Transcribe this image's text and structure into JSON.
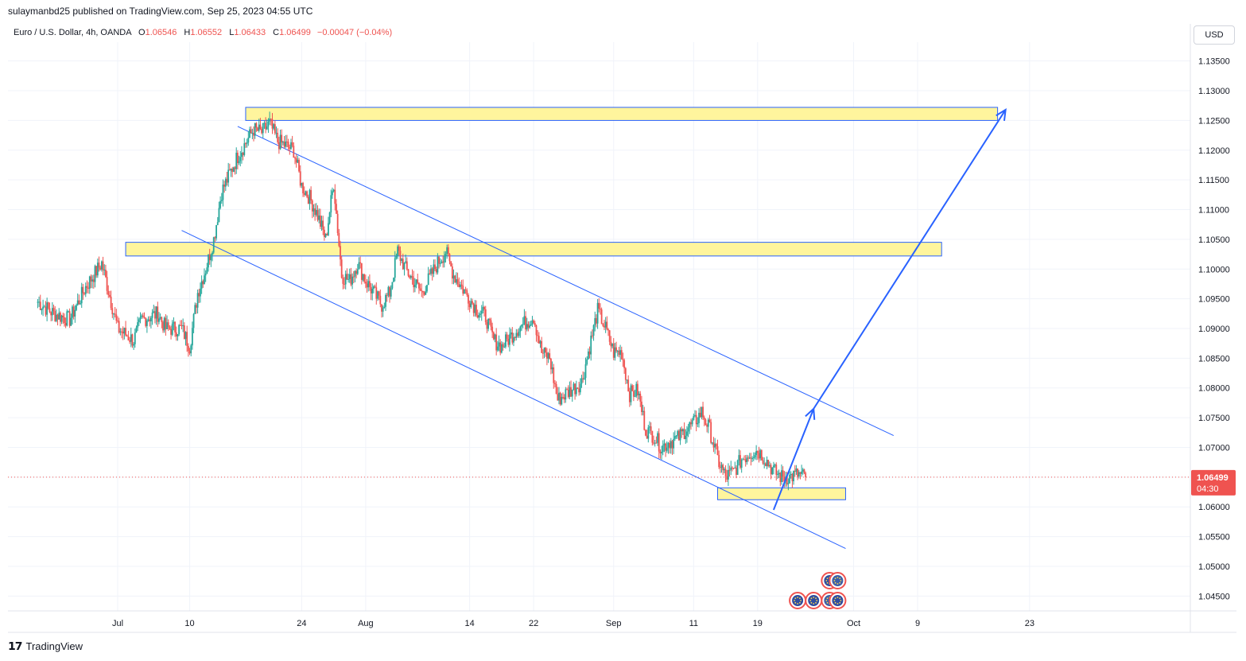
{
  "header": {
    "published": "sulaymanbd25 published on TradingView.com, Sep 25, 2023 04:55 UTC"
  },
  "legend": {
    "symbol": "Euro / U.S. Dollar, 4h, OANDA",
    "o_label": "O",
    "o": "1.06546",
    "h_label": "H",
    "h": "1.06552",
    "l_label": "L",
    "l": "1.06433",
    "c_label": "C",
    "c": "1.06499",
    "change": "−0.00047 (−0.04%)"
  },
  "currency_button": "USD",
  "footer": {
    "brand": "TradingView",
    "logo_icon": "tradingview-logo-icon"
  },
  "colors": {
    "up": "#26a69a",
    "down": "#ef5350",
    "zone_fill": "#fff59d",
    "zone_stroke": "#2962ff",
    "channel": "#2962ff",
    "price_tag": "#ef5350"
  },
  "chart_data": {
    "type": "candlestick",
    "symbol": "EURUSD",
    "timeframe": "4h",
    "y_axis": {
      "ylim": [
        1.0425,
        1.1375
      ],
      "ticks": [
        "1.13500",
        "1.13000",
        "1.12500",
        "1.12000",
        "1.11500",
        "1.11000",
        "1.10500",
        "1.10000",
        "1.09500",
        "1.09000",
        "1.08500",
        "1.08000",
        "1.07500",
        "1.07000",
        "1.06500",
        "1.06000",
        "1.05500",
        "1.05000",
        "1.04500"
      ],
      "tick_values": [
        1.135,
        1.13,
        1.125,
        1.12,
        1.115,
        1.11,
        1.105,
        1.1,
        1.095,
        1.09,
        1.085,
        1.08,
        1.075,
        1.07,
        1.065,
        1.06,
        1.055,
        1.05,
        1.045
      ]
    },
    "x_axis": {
      "labels": [
        "Jul",
        "10",
        "24",
        "Aug",
        "14",
        "22",
        "Sep",
        "11",
        "19",
        "Oct",
        "9",
        "23"
      ],
      "label_dates": [
        "2023-07-01",
        "2023-07-10",
        "2023-07-24",
        "2023-08-01",
        "2023-08-14",
        "2023-08-22",
        "2023-09-01",
        "2023-09-11",
        "2023-09-19",
        "2023-10-01",
        "2023-10-09",
        "2023-10-23"
      ]
    },
    "last_price": {
      "value": 1.06499,
      "label": "1.06499",
      "countdown": "04:30"
    },
    "closes_path": [
      [
        "2023-06-21",
        1.0945
      ],
      [
        "2023-06-23",
        1.0925
      ],
      [
        "2023-06-25",
        1.0915
      ],
      [
        "2023-06-27",
        1.097
      ],
      [
        "2023-06-29",
        1.101
      ],
      [
        "2023-07-01",
        1.09
      ],
      [
        "2023-07-03",
        1.088
      ],
      [
        "2023-07-04",
        1.0915
      ],
      [
        "2023-07-06",
        1.0925
      ],
      [
        "2023-07-07",
        1.09
      ],
      [
        "2023-07-09",
        1.09
      ],
      [
        "2023-07-10",
        1.087
      ],
      [
        "2023-07-11",
        1.096
      ],
      [
        "2023-07-12",
        1.1
      ],
      [
        "2023-07-13",
        1.105
      ],
      [
        "2023-07-14",
        1.113
      ],
      [
        "2023-07-16",
        1.119
      ],
      [
        "2023-07-18",
        1.1235
      ],
      [
        "2023-07-19",
        1.123
      ],
      [
        "2023-07-20",
        1.1245
      ],
      [
        "2023-07-21",
        1.1215
      ],
      [
        "2023-07-23",
        1.12
      ],
      [
        "2023-07-24",
        1.114
      ],
      [
        "2023-07-25",
        1.112
      ],
      [
        "2023-07-26",
        1.109
      ],
      [
        "2023-07-27",
        1.105
      ],
      [
        "2023-07-28",
        1.1145
      ],
      [
        "2023-07-29",
        1.099
      ],
      [
        "2023-07-30",
        1.098
      ],
      [
        "2023-07-31",
        1.101
      ],
      [
        "2023-08-01",
        1.098
      ],
      [
        "2023-08-02",
        1.096
      ],
      [
        "2023-08-03",
        1.094
      ],
      [
        "2023-08-04",
        1.096
      ],
      [
        "2023-08-05",
        1.103
      ],
      [
        "2023-08-06",
        1.1
      ],
      [
        "2023-08-08",
        1.096
      ],
      [
        "2023-08-10",
        1.101
      ],
      [
        "2023-08-11",
        1.103
      ],
      [
        "2023-08-12",
        1.099
      ],
      [
        "2023-08-14",
        1.095
      ],
      [
        "2023-08-15",
        1.093
      ],
      [
        "2023-08-16",
        1.092
      ],
      [
        "2023-08-17",
        1.088
      ],
      [
        "2023-08-18",
        1.087
      ],
      [
        "2023-08-20",
        1.09
      ],
      [
        "2023-08-22",
        1.092
      ],
      [
        "2023-08-23",
        1.086
      ],
      [
        "2023-08-24",
        1.085
      ],
      [
        "2023-08-25",
        1.078
      ],
      [
        "2023-08-26",
        1.079
      ],
      [
        "2023-08-27",
        1.08
      ],
      [
        "2023-08-28",
        1.081
      ],
      [
        "2023-08-29",
        1.087
      ],
      [
        "2023-08-30",
        1.093
      ],
      [
        "2023-08-31",
        1.09
      ],
      [
        "2023-09-01",
        1.086
      ],
      [
        "2023-09-02",
        1.086
      ],
      [
        "2023-09-03",
        1.079
      ],
      [
        "2023-09-04",
        1.0795
      ],
      [
        "2023-09-05",
        1.073
      ],
      [
        "2023-09-06",
        1.072
      ],
      [
        "2023-09-07",
        1.07
      ],
      [
        "2023-09-08",
        1.071
      ],
      [
        "2023-09-09",
        1.0715
      ],
      [
        "2023-09-10",
        1.073
      ],
      [
        "2023-09-11",
        1.074
      ],
      [
        "2023-09-12",
        1.076
      ],
      [
        "2023-09-13",
        1.073
      ],
      [
        "2023-09-14",
        1.068
      ],
      [
        "2023-09-15",
        1.065
      ],
      [
        "2023-09-16",
        1.066
      ],
      [
        "2023-09-17",
        1.068
      ],
      [
        "2023-09-18",
        1.069
      ],
      [
        "2023-09-19",
        1.0695
      ],
      [
        "2023-09-20",
        1.068
      ],
      [
        "2023-09-21",
        1.066
      ],
      [
        "2023-09-22",
        1.065
      ],
      [
        "2023-09-23",
        1.065
      ],
      [
        "2023-09-24",
        1.0655
      ],
      [
        "2023-09-25",
        1.06499
      ]
    ],
    "zones": [
      {
        "name": "resistance-zone-upper",
        "from": "2023-07-17",
        "to": "2023-10-19",
        "low": 1.125,
        "high": 1.1272
      },
      {
        "name": "resistance-zone-middle",
        "from": "2023-07-02",
        "to": "2023-10-12",
        "low": 1.1022,
        "high": 1.1045
      },
      {
        "name": "support-zone",
        "from": "2023-09-14",
        "to": "2023-09-30",
        "low": 1.0612,
        "high": 1.0632
      }
    ],
    "channel_lines": [
      {
        "name": "channel-upper-line",
        "from": [
          "2023-07-16",
          1.124
        ],
        "to": [
          "2023-10-06",
          1.072
        ]
      },
      {
        "name": "channel-lower-line",
        "from": [
          "2023-07-09",
          1.1065
        ],
        "to": [
          "2023-09-30",
          1.053
        ]
      }
    ],
    "projection_arrows": [
      {
        "name": "projection-arrow-1",
        "from": [
          "2023-09-21",
          1.0595
        ],
        "to": [
          "2023-09-26",
          1.0765
        ]
      },
      {
        "name": "projection-arrow-2",
        "from": [
          "2023-09-26",
          1.0765
        ],
        "to": [
          "2023-10-20",
          1.1268
        ]
      }
    ],
    "event_markers": [
      {
        "name": "event-marker-eu-1",
        "date": "2023-09-28",
        "row": 1,
        "icon": "eu-flag-icon"
      },
      {
        "name": "event-marker-us-1",
        "date": "2023-09-29",
        "row": 1,
        "icon": "us-flag-icon"
      },
      {
        "name": "event-marker-eu-2",
        "date": "2023-09-24",
        "row": 2,
        "icon": "eu-flag-icon"
      },
      {
        "name": "event-marker-eu-3",
        "date": "2023-09-26",
        "row": 2,
        "icon": "eu-flag-icon"
      },
      {
        "name": "event-marker-us-2",
        "date": "2023-09-28",
        "row": 2,
        "icon": "us-flag-icon"
      },
      {
        "name": "event-marker-eu-4",
        "date": "2023-09-29",
        "row": 2,
        "icon": "eu-flag-icon"
      }
    ]
  }
}
